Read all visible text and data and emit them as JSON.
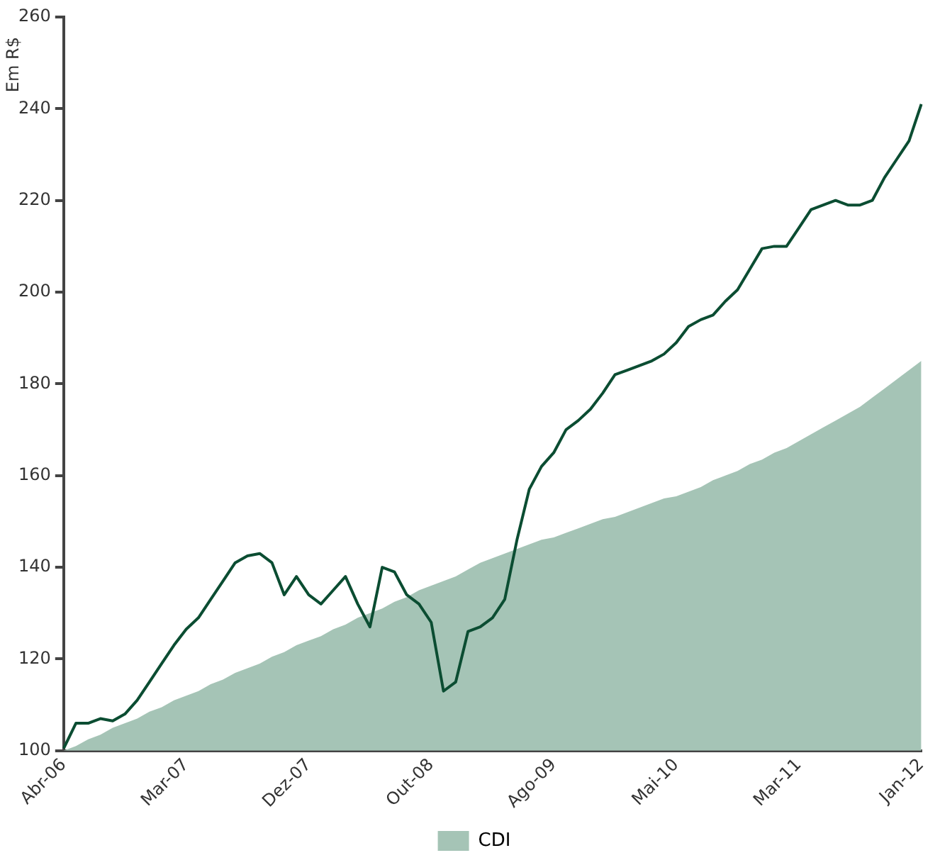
{
  "chart_data": {
    "type": "line",
    "ylabel": "Em R$",
    "categories": [
      "Abr-06",
      null,
      null,
      null,
      null,
      null,
      null,
      null,
      null,
      null,
      "Mar-07",
      null,
      null,
      null,
      null,
      null,
      null,
      null,
      null,
      null,
      "Dez-07",
      null,
      null,
      null,
      null,
      null,
      null,
      null,
      null,
      null,
      "Out-08",
      null,
      null,
      null,
      null,
      null,
      null,
      null,
      null,
      null,
      "Ago-09",
      null,
      null,
      null,
      null,
      null,
      null,
      null,
      null,
      null,
      "Mai-10",
      null,
      null,
      null,
      null,
      null,
      null,
      null,
      null,
      null,
      "Mar-11",
      null,
      null,
      null,
      null,
      null,
      null,
      null,
      null,
      null,
      "Jan-12"
    ],
    "ylim": [
      100,
      260
    ],
    "yticks": [
      100,
      120,
      140,
      160,
      180,
      200,
      220,
      240,
      260
    ],
    "grid": false,
    "legend": "bottom",
    "marker": "none",
    "series": [
      {
        "name": "CDI",
        "type": "area",
        "color": "#a5c4b6",
        "values": [
          100,
          101,
          102.5,
          103.5,
          105,
          106,
          107,
          108.5,
          109.5,
          111,
          112,
          113,
          114.5,
          115.5,
          117,
          118,
          119,
          120.5,
          121.5,
          123,
          124,
          125,
          126.5,
          127.5,
          129,
          130,
          131,
          132.5,
          133.5,
          135,
          136,
          137,
          138,
          139.5,
          141,
          142,
          143,
          144,
          145,
          146,
          146.5,
          147.5,
          148.5,
          149.5,
          150.5,
          151,
          152,
          153,
          154,
          155,
          155.5,
          156.5,
          157.5,
          159,
          160,
          161,
          162.5,
          163.5,
          165,
          166,
          167.5,
          169,
          170.5,
          172,
          173.5,
          175,
          177,
          179,
          181,
          183,
          185
        ]
      },
      {
        "type": "line",
        "color": "#0b4d32",
        "values": [
          100.5,
          106,
          106,
          107,
          106.5,
          108,
          111,
          115,
          119,
          123,
          126.5,
          129,
          133,
          137,
          141,
          142.5,
          143,
          141,
          134,
          138,
          134,
          132,
          135,
          138,
          132,
          127,
          140,
          139,
          134,
          132,
          128,
          113,
          115,
          126,
          127,
          129,
          133,
          146,
          157,
          162,
          165,
          170,
          172,
          174.5,
          178,
          182,
          183,
          184,
          185,
          186.5,
          189,
          192.5,
          194,
          195,
          198,
          200.5,
          205,
          209.5,
          210,
          210,
          214,
          218,
          219,
          220,
          219,
          219,
          220,
          225,
          229,
          233,
          241
        ]
      }
    ]
  }
}
